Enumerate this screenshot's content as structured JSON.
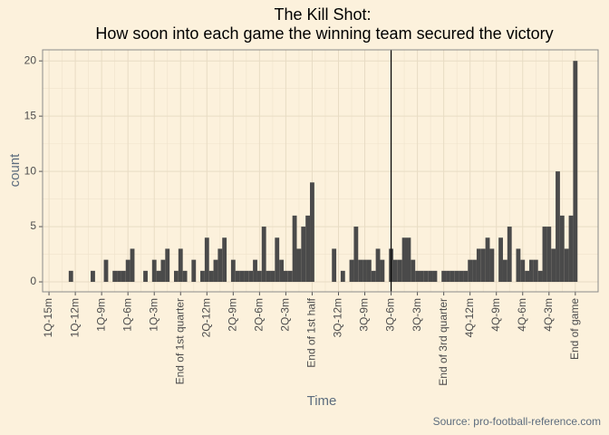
{
  "chart_data": {
    "type": "histogram",
    "title": "The Kill Shot:",
    "subtitle": "How soon into each game the winning team secured the victory",
    "x_label": "Time",
    "y_label": "count",
    "caption": "Source: pro-football-reference.com",
    "color": "#4a4a4a",
    "bins": [
      -0.25,
      0.25,
      0.75,
      1.25,
      1.75,
      2.25,
      2.75,
      3.25,
      3.75,
      4.25,
      4.75,
      5.25,
      5.75,
      6.25,
      6.75,
      7.25,
      7.75,
      8.25,
      8.75,
      9.25,
      9.75,
      10.25,
      10.75,
      11.25,
      11.75,
      12.25,
      12.75,
      13.25,
      13.75,
      14.25,
      14.75,
      15.25,
      15.75,
      16.25,
      16.75,
      17.25,
      17.75,
      18.25,
      18.75,
      19.25,
      19.75,
      20.25,
      20.75,
      21.25,
      21.75,
      22.25,
      22.75,
      23.25,
      23.75,
      24.25,
      24.75,
      25.25,
      25.75,
      26.25,
      26.75,
      27.25,
      27.75,
      28.25,
      28.75,
      29.25,
      29.75,
      30.25,
      30.75,
      31.25,
      31.75,
      32.25,
      32.75,
      33.25,
      33.75,
      34.25,
      34.75,
      35.25,
      35.75,
      36.25,
      36.75,
      37.25,
      37.75,
      38.25,
      38.75,
      39.25,
      39.75,
      40.25,
      40.75,
      41.25,
      41.75,
      42.25,
      42.75,
      43.25,
      43.75,
      44.25,
      44.75,
      45.25,
      45.75,
      46.25,
      46.75,
      47.25,
      47.75,
      48.25,
      48.75,
      49.25,
      49.75,
      50.25,
      50.75,
      51.25,
      51.75,
      52.25,
      52.75,
      53.25,
      53.75,
      54.25,
      54.75,
      55.25,
      55.75,
      56.25,
      56.75,
      57.25,
      57.75,
      58.25,
      58.75,
      59.25,
      59.75,
      60.25
    ],
    "values": [
      0,
      0,
      0,
      0,
      0,
      1,
      0,
      0,
      0,
      0,
      1,
      0,
      0,
      2,
      0,
      1,
      1,
      1,
      2,
      3,
      0,
      0,
      1,
      0,
      2,
      1,
      2,
      3,
      0,
      1,
      3,
      1,
      0,
      2,
      0,
      1,
      4,
      1,
      2,
      3,
      4,
      0,
      2,
      1,
      1,
      1,
      1,
      2,
      1,
      5,
      1,
      1,
      4,
      2,
      1,
      1,
      6,
      3,
      5,
      6,
      9,
      0,
      0,
      0,
      0,
      3,
      0,
      1,
      0,
      2,
      5,
      2,
      2,
      2,
      1,
      3,
      2,
      0,
      3,
      2,
      2,
      4,
      4,
      2,
      1,
      1,
      1,
      1,
      1,
      0,
      1,
      1,
      1,
      1,
      1,
      1,
      2,
      2,
      3,
      3,
      4,
      3,
      0,
      4,
      2,
      5,
      0,
      3,
      2,
      1,
      2,
      2,
      1,
      5,
      5,
      3,
      10,
      6,
      3,
      6,
      20
    ],
    "vline": 39,
    "xlim": [
      -0.73,
      62.6
    ],
    "ylim": [
      -0.9,
      21
    ],
    "xticks": [
      {
        "value": 0,
        "label": "1Q-15m"
      },
      {
        "value": 3,
        "label": "1Q-12m"
      },
      {
        "value": 6,
        "label": "1Q-9m"
      },
      {
        "value": 9,
        "label": "1Q-6m"
      },
      {
        "value": 12,
        "label": "1Q-3m"
      },
      {
        "value": 15,
        "label": "End of 1st quarter"
      },
      {
        "value": 18,
        "label": "2Q-12m"
      },
      {
        "value": 21,
        "label": "2Q-9m"
      },
      {
        "value": 24,
        "label": "2Q-6m"
      },
      {
        "value": 27,
        "label": "2Q-3m"
      },
      {
        "value": 30,
        "label": "End of 1st half"
      },
      {
        "value": 33,
        "label": "3Q-12m"
      },
      {
        "value": 36,
        "label": "3Q-9m"
      },
      {
        "value": 39,
        "label": "3Q-6m"
      },
      {
        "value": 42,
        "label": "3Q-3m"
      },
      {
        "value": 45,
        "label": "End of 3rd quarter"
      },
      {
        "value": 48,
        "label": "4Q-12m"
      },
      {
        "value": 51,
        "label": "4Q-9m"
      },
      {
        "value": 54,
        "label": "4Q-6m"
      },
      {
        "value": 57,
        "label": "4Q-3m"
      },
      {
        "value": 60,
        "label": "End of game"
      }
    ],
    "yticks": [
      0,
      5,
      10,
      15,
      20
    ],
    "grid": true
  }
}
